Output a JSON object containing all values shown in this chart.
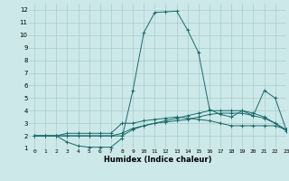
{
  "title": "",
  "xlabel": "Humidex (Indice chaleur)",
  "bg_color": "#cce8e8",
  "grid_color": "#aacccc",
  "line_color": "#1a6b6b",
  "xlim": [
    -0.5,
    23
  ],
  "ylim": [
    1,
    12.5
  ],
  "xticks": [
    0,
    1,
    2,
    3,
    4,
    5,
    6,
    7,
    8,
    9,
    10,
    11,
    12,
    13,
    14,
    15,
    16,
    17,
    18,
    19,
    20,
    21,
    22,
    23
  ],
  "yticks": [
    1,
    2,
    3,
    4,
    5,
    6,
    7,
    8,
    9,
    10,
    11,
    12
  ],
  "series": [
    [
      2.0,
      2.0,
      2.0,
      1.5,
      1.2,
      1.1,
      1.1,
      1.1,
      1.8,
      5.6,
      10.2,
      11.8,
      11.85,
      11.9,
      10.4,
      8.6,
      4.1,
      3.7,
      3.5,
      4.0,
      3.6,
      5.6,
      5.0,
      2.5
    ],
    [
      2.0,
      2.0,
      2.0,
      2.0,
      2.0,
      2.0,
      2.0,
      2.0,
      2.0,
      2.5,
      2.8,
      3.0,
      3.2,
      3.4,
      3.6,
      3.8,
      4.0,
      4.0,
      4.0,
      4.0,
      3.8,
      3.5,
      3.0,
      2.5
    ],
    [
      2.0,
      2.0,
      2.0,
      2.0,
      2.0,
      2.0,
      2.0,
      2.0,
      2.2,
      2.6,
      2.8,
      3.0,
      3.1,
      3.2,
      3.3,
      3.5,
      3.7,
      3.8,
      3.8,
      3.8,
      3.6,
      3.4,
      3.0,
      2.4
    ],
    [
      2.0,
      2.0,
      2.0,
      2.2,
      2.2,
      2.2,
      2.2,
      2.2,
      3.0,
      3.0,
      3.2,
      3.3,
      3.4,
      3.5,
      3.4,
      3.3,
      3.2,
      3.0,
      2.8,
      2.8,
      2.8,
      2.8,
      2.8,
      2.5
    ]
  ]
}
